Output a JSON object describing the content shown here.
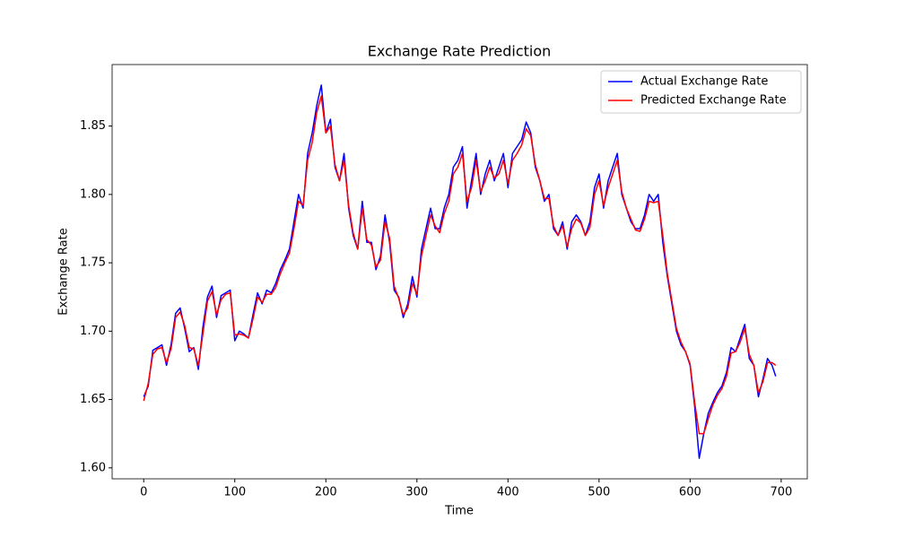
{
  "chart_data": {
    "type": "line",
    "title": "Exchange Rate Prediction",
    "x_label": "Time",
    "y_label": "Exchange Rate",
    "x": [
      0,
      5,
      10,
      15,
      20,
      25,
      30,
      35,
      40,
      45,
      50,
      55,
      60,
      65,
      70,
      75,
      80,
      85,
      90,
      95,
      100,
      105,
      110,
      115,
      120,
      125,
      130,
      135,
      140,
      145,
      150,
      155,
      160,
      165,
      170,
      175,
      180,
      185,
      190,
      195,
      200,
      205,
      210,
      215,
      220,
      225,
      230,
      235,
      240,
      245,
      250,
      255,
      260,
      265,
      270,
      275,
      280,
      285,
      290,
      295,
      300,
      305,
      310,
      315,
      320,
      325,
      330,
      335,
      340,
      345,
      350,
      355,
      360,
      365,
      370,
      375,
      380,
      385,
      390,
      395,
      400,
      405,
      410,
      415,
      420,
      425,
      430,
      435,
      440,
      445,
      450,
      455,
      460,
      465,
      470,
      475,
      480,
      485,
      490,
      495,
      500,
      505,
      510,
      515,
      520,
      525,
      530,
      535,
      540,
      545,
      550,
      555,
      560,
      565,
      570,
      575,
      580,
      585,
      590,
      595,
      600,
      605,
      610,
      615,
      620,
      625,
      630,
      635,
      640,
      645,
      650,
      655,
      660,
      665,
      670,
      675,
      680,
      685,
      690,
      694
    ],
    "series": [
      {
        "name": "Actual Exchange Rate",
        "color": "#0000ff",
        "values": [
          1.652,
          1.66,
          1.686,
          1.688,
          1.69,
          1.675,
          1.69,
          1.713,
          1.717,
          1.702,
          1.685,
          1.688,
          1.672,
          1.703,
          1.725,
          1.733,
          1.71,
          1.726,
          1.728,
          1.73,
          1.693,
          1.7,
          1.698,
          1.695,
          1.712,
          1.728,
          1.72,
          1.73,
          1.728,
          1.735,
          1.745,
          1.752,
          1.76,
          1.78,
          1.8,
          1.79,
          1.83,
          1.845,
          1.865,
          1.88,
          1.845,
          1.855,
          1.82,
          1.81,
          1.83,
          1.79,
          1.77,
          1.76,
          1.795,
          1.765,
          1.765,
          1.745,
          1.755,
          1.785,
          1.765,
          1.73,
          1.725,
          1.71,
          1.72,
          1.74,
          1.725,
          1.76,
          1.775,
          1.79,
          1.775,
          1.775,
          1.79,
          1.8,
          1.82,
          1.825,
          1.835,
          1.79,
          1.81,
          1.83,
          1.8,
          1.815,
          1.825,
          1.81,
          1.82,
          1.83,
          1.805,
          1.83,
          1.835,
          1.84,
          1.853,
          1.845,
          1.82,
          1.81,
          1.795,
          1.8,
          1.775,
          1.77,
          1.78,
          1.76,
          1.78,
          1.785,
          1.78,
          1.77,
          1.78,
          1.805,
          1.815,
          1.79,
          1.81,
          1.82,
          1.83,
          1.8,
          1.79,
          1.78,
          1.775,
          1.775,
          1.785,
          1.8,
          1.795,
          1.8,
          1.765,
          1.74,
          1.72,
          1.7,
          1.69,
          1.685,
          1.675,
          1.645,
          1.607,
          1.625,
          1.64,
          1.648,
          1.655,
          1.66,
          1.67,
          1.688,
          1.685,
          1.695,
          1.705,
          1.68,
          1.675,
          1.652,
          1.665,
          1.68,
          1.675,
          1.667
        ]
      },
      {
        "name": "Predicted Exchange Rate",
        "color": "#ff0000",
        "values": [
          1.649,
          1.662,
          1.683,
          1.687,
          1.688,
          1.677,
          1.687,
          1.71,
          1.714,
          1.704,
          1.688,
          1.687,
          1.675,
          1.698,
          1.722,
          1.729,
          1.712,
          1.723,
          1.727,
          1.728,
          1.697,
          1.698,
          1.697,
          1.695,
          1.709,
          1.725,
          1.721,
          1.727,
          1.727,
          1.732,
          1.742,
          1.75,
          1.757,
          1.775,
          1.795,
          1.792,
          1.825,
          1.838,
          1.86,
          1.872,
          1.845,
          1.85,
          1.822,
          1.81,
          1.825,
          1.792,
          1.772,
          1.76,
          1.79,
          1.767,
          1.763,
          1.747,
          1.752,
          1.78,
          1.768,
          1.733,
          1.724,
          1.712,
          1.717,
          1.735,
          1.727,
          1.755,
          1.77,
          1.785,
          1.777,
          1.772,
          1.786,
          1.795,
          1.815,
          1.82,
          1.83,
          1.795,
          1.805,
          1.825,
          1.802,
          1.81,
          1.82,
          1.812,
          1.815,
          1.825,
          1.808,
          1.825,
          1.83,
          1.836,
          1.848,
          1.843,
          1.822,
          1.81,
          1.797,
          1.797,
          1.777,
          1.77,
          1.777,
          1.762,
          1.775,
          1.782,
          1.779,
          1.77,
          1.776,
          1.8,
          1.81,
          1.792,
          1.805,
          1.815,
          1.825,
          1.802,
          1.79,
          1.782,
          1.774,
          1.773,
          1.782,
          1.795,
          1.794,
          1.795,
          1.77,
          1.742,
          1.722,
          1.702,
          1.692,
          1.685,
          1.676,
          1.648,
          1.625,
          1.625,
          1.636,
          1.646,
          1.653,
          1.658,
          1.667,
          1.684,
          1.685,
          1.692,
          1.702,
          1.683,
          1.675,
          1.655,
          1.663,
          1.677,
          1.677,
          1.675
        ]
      }
    ],
    "xlim": [
      -34.7,
      728.7
    ],
    "ylim": [
      1.592,
      1.895
    ],
    "xticks": [
      0,
      100,
      200,
      300,
      400,
      500,
      600,
      700
    ],
    "yticks": [
      {
        "value": 1.6,
        "label": "1.60"
      },
      1.65,
      {
        "value": 1.7,
        "label": "1.70"
      },
      1.75,
      {
        "value": 1.8,
        "label": "1.80"
      },
      1.85
    ],
    "grid": false,
    "legend": "upper right"
  }
}
